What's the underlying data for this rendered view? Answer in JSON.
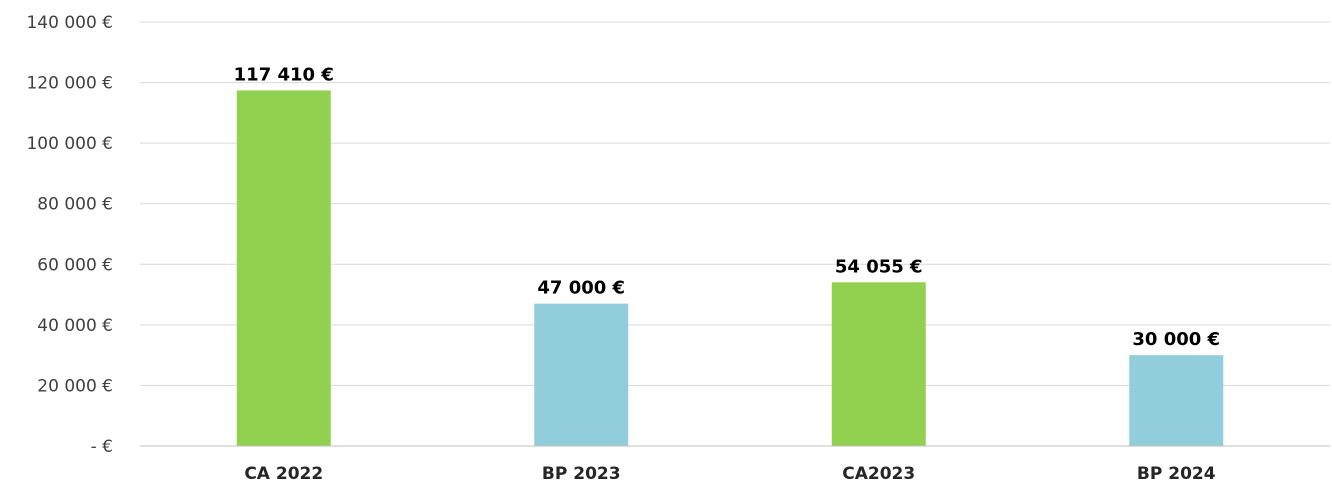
{
  "chart_data": {
    "type": "bar",
    "categories": [
      "CA 2022",
      "BP 2023",
      "CA2023",
      "BP 2024"
    ],
    "values": [
      117410,
      47000,
      54055,
      30000
    ],
    "data_labels": [
      "117 410 €",
      "47 000 €",
      "54 055 €",
      "30 000 €"
    ],
    "bar_colors": [
      "#92d050",
      "#92cddc",
      "#92d050",
      "#92cddc"
    ],
    "ylim": [
      0,
      140000
    ],
    "yticks": [
      0,
      20000,
      40000,
      60000,
      80000,
      100000,
      120000,
      140000
    ],
    "ytick_labels": [
      "-   €",
      "20 000 €",
      "40 000 €",
      "60 000 €",
      "80 000 €",
      "100 000 €",
      "120 000 €",
      "140 000 €"
    ],
    "grid": true,
    "legend": "none"
  }
}
